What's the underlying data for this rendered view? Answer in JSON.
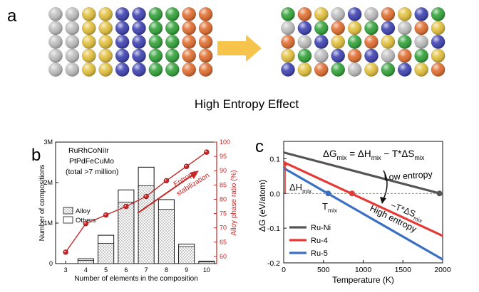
{
  "panel_a": {
    "label": "a",
    "caption": "High Entropy Effect",
    "colors": {
      "grey": "#bdbdbd",
      "yellow": "#e2bf3a",
      "blue": "#3b3fb0",
      "green": "#2fa136",
      "orange": "#e06b2c",
      "arrow": "#f6c44a"
    },
    "left_grid": [
      [
        "grey",
        "grey",
        "yellow",
        "yellow",
        "blue",
        "blue",
        "green",
        "green",
        "orange",
        "orange"
      ],
      [
        "grey",
        "grey",
        "yellow",
        "yellow",
        "blue",
        "blue",
        "green",
        "green",
        "orange",
        "orange"
      ],
      [
        "grey",
        "grey",
        "yellow",
        "yellow",
        "blue",
        "blue",
        "green",
        "green",
        "orange",
        "orange"
      ],
      [
        "grey",
        "grey",
        "yellow",
        "yellow",
        "blue",
        "blue",
        "green",
        "green",
        "orange",
        "orange"
      ],
      [
        "grey",
        "grey",
        "yellow",
        "yellow",
        "blue",
        "blue",
        "green",
        "green",
        "orange",
        "orange"
      ]
    ],
    "right_grid": [
      [
        "green",
        "orange",
        "yellow",
        "grey",
        "blue",
        "grey",
        "orange",
        "yellow",
        "blue",
        "green"
      ],
      [
        "grey",
        "blue",
        "green",
        "orange",
        "yellow",
        "green",
        "blue",
        "grey",
        "orange",
        "yellow"
      ],
      [
        "orange",
        "grey",
        "blue",
        "yellow",
        "green",
        "orange",
        "yellow",
        "green",
        "grey",
        "blue"
      ],
      [
        "yellow",
        "green",
        "grey",
        "blue",
        "orange",
        "blue",
        "grey",
        "orange",
        "green",
        "yellow"
      ],
      [
        "blue",
        "yellow",
        "orange",
        "green",
        "grey",
        "yellow",
        "green",
        "blue",
        "yellow",
        "orange"
      ]
    ]
  },
  "panel_b": {
    "label": "b",
    "annotation_lines": [
      "RuRhCoNiIr",
      "PtPdFeCuMo",
      "(total >7 million)"
    ],
    "arrow_label_lines": [
      "Entropy",
      "stabilization"
    ],
    "colors": {
      "red": "#c62828",
      "bar_fill": "#e6e6e6",
      "bar_edge": "#111111"
    }
  },
  "panel_c": {
    "label": "c",
    "equation": "ΔG_mix = ΔH_mix − T*ΔS_mix",
    "annotations": {
      "low_entropy": "Low entropy",
      "high_entropy": "High entropy",
      "delta_h": "ΔH_mix",
      "t_mix": "T_mix",
      "ts_term": "−T*ΔS_mix"
    }
  },
  "chart_data": [
    {
      "type": "bar",
      "title": "",
      "xlabel": "Number of elements in the composition",
      "ylabel": "Number of compositions",
      "y2label": "Alloy phase ratio (%)",
      "categories": [
        "3",
        "4",
        "5",
        "6",
        "7",
        "8",
        "9",
        "10"
      ],
      "ylim": [
        0,
        3
      ],
      "y_ticks": [
        "0",
        "1M",
        "2M",
        "3M"
      ],
      "y2lim": [
        57.5,
        100
      ],
      "y2_ticks": [
        "60",
        "65",
        "70",
        "75",
        "80",
        "85",
        "90",
        "95",
        "100"
      ],
      "series": [
        {
          "name": "Others",
          "kind": "bar",
          "values": [
            0,
            0.12,
            0.7,
            1.82,
            2.38,
            1.58,
            0.48,
            0.06
          ]
        },
        {
          "name": "Alloy",
          "kind": "bar",
          "values": [
            0,
            0.08,
            0.5,
            1.52,
            1.92,
            1.34,
            0.42,
            0.04
          ]
        },
        {
          "name": "",
          "kind": "line",
          "axis": "y2",
          "values": [
            61.5,
            71.5,
            74.5,
            77.5,
            81.0,
            86.5,
            91.5,
            96.5
          ]
        }
      ],
      "legend": "left",
      "grid": false
    },
    {
      "type": "line",
      "title": "",
      "xlabel": "Temperature (K)",
      "ylabel": "ΔG (eV/atom)",
      "xlim": [
        0,
        2000
      ],
      "ylim": [
        -0.2,
        0.15
      ],
      "x_ticks": [
        0,
        500,
        1000,
        1500,
        2000
      ],
      "y_ticks": [
        -0.2,
        -0.1,
        0.0,
        0.1
      ],
      "series": [
        {
          "name": "Ru-Ni",
          "color": "#555555",
          "x": [
            0,
            2000
          ],
          "y": [
            0.118,
            -0.002
          ]
        },
        {
          "name": "Ru-4",
          "color": "#e53935",
          "x": [
            0,
            2000
          ],
          "y": [
            0.09,
            -0.122
          ]
        },
        {
          "name": "Ru-5",
          "color": "#3a6fc4",
          "x": [
            0,
            2000
          ],
          "y": [
            0.073,
            -0.19
          ]
        }
      ],
      "markers": [
        {
          "x": 560,
          "y": 0.0,
          "color": "#3a6fc4"
        },
        {
          "x": 860,
          "y": 0.0,
          "color": "#e53935"
        },
        {
          "x": 1960,
          "y": 0.0,
          "color": "#555555"
        }
      ],
      "legend": "bottom-left",
      "grid": false
    }
  ]
}
